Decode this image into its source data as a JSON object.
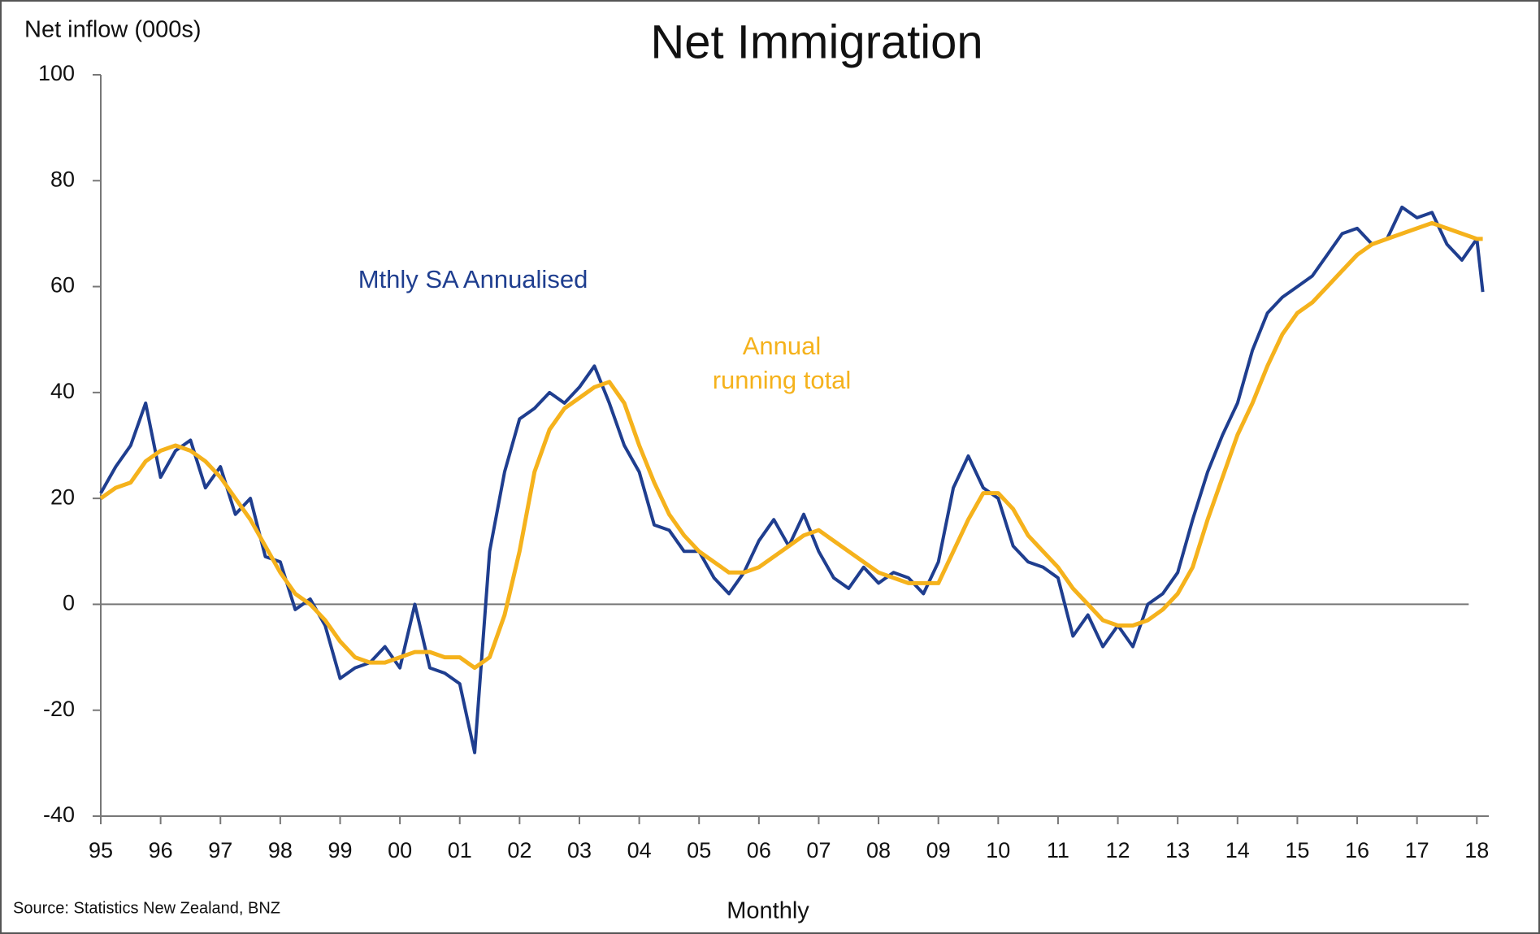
{
  "chart_data": {
    "type": "line",
    "title": "Net Immigration",
    "y_label": "Net inflow (000s)",
    "x_label": "Monthly",
    "source": "Source: Statistics New Zealand, BNZ",
    "annotations": [
      {
        "text": "Mthly SA Annualised",
        "color": "#1f3e8f"
      },
      {
        "text": "Annual",
        "color": "#f5b21c"
      },
      {
        "text": "running total",
        "color": "#f5b21c"
      }
    ],
    "x": [
      1995,
      1995.25,
      1995.5,
      1995.75,
      1996,
      1996.25,
      1996.5,
      1996.75,
      1997,
      1997.25,
      1997.5,
      1997.75,
      1998,
      1998.25,
      1998.5,
      1998.75,
      1999,
      1999.25,
      1999.5,
      1999.75,
      2000,
      2000.25,
      2000.5,
      2000.75,
      2001,
      2001.25,
      2001.5,
      2001.75,
      2002,
      2002.25,
      2002.5,
      2002.75,
      2003,
      2003.25,
      2003.5,
      2003.75,
      2004,
      2004.25,
      2004.5,
      2004.75,
      2005,
      2005.25,
      2005.5,
      2005.75,
      2006,
      2006.25,
      2006.5,
      2006.75,
      2007,
      2007.25,
      2007.5,
      2007.75,
      2008,
      2008.25,
      2008.5,
      2008.75,
      2009,
      2009.25,
      2009.5,
      2009.75,
      2010,
      2010.25,
      2010.5,
      2010.75,
      2011,
      2011.25,
      2011.5,
      2011.75,
      2012,
      2012.25,
      2012.5,
      2012.75,
      2013,
      2013.25,
      2013.5,
      2013.75,
      2014,
      2014.25,
      2014.5,
      2014.75,
      2015,
      2015.25,
      2015.5,
      2015.75,
      2016,
      2016.25,
      2016.5,
      2016.75,
      2017,
      2017.25,
      2017.5,
      2017.75,
      2018,
      2018.1
    ],
    "series": [
      {
        "name": "Mthly SA Annualised",
        "color": "#1f3e8f",
        "values": [
          21,
          26,
          30,
          38,
          24,
          29,
          31,
          22,
          26,
          17,
          20,
          9,
          8,
          -1,
          1,
          -4,
          -14,
          -12,
          -11,
          -8,
          -12,
          0,
          -12,
          -13,
          -15,
          -28,
          10,
          25,
          35,
          37,
          40,
          38,
          41,
          45,
          38,
          30,
          25,
          15,
          14,
          10,
          10,
          5,
          2,
          6,
          12,
          16,
          11,
          17,
          10,
          5,
          3,
          7,
          4,
          6,
          5,
          2,
          8,
          22,
          28,
          22,
          20,
          11,
          8,
          7,
          5,
          -6,
          -2,
          -8,
          -4,
          -8,
          0,
          2,
          6,
          16,
          25,
          32,
          38,
          48,
          55,
          58,
          60,
          62,
          66,
          70,
          71,
          68,
          69,
          75,
          73,
          74,
          68,
          65,
          69,
          59
        ]
      },
      {
        "name": "Annual running total",
        "color": "#f5b21c",
        "values": [
          20,
          22,
          23,
          27,
          29,
          30,
          29,
          27,
          24,
          20,
          16,
          11,
          6,
          2,
          0,
          -3,
          -7,
          -10,
          -11,
          -11,
          -10,
          -9,
          -9,
          -10,
          -10,
          -12,
          -10,
          -2,
          10,
          25,
          33,
          37,
          39,
          41,
          42,
          38,
          30,
          23,
          17,
          13,
          10,
          8,
          6,
          6,
          7,
          9,
          11,
          13,
          14,
          12,
          10,
          8,
          6,
          5,
          4,
          4,
          4,
          10,
          16,
          21,
          21,
          18,
          13,
          10,
          7,
          3,
          0,
          -3,
          -4,
          -4,
          -3,
          -1,
          2,
          7,
          16,
          24,
          32,
          38,
          45,
          51,
          55,
          57,
          60,
          63,
          66,
          68,
          69,
          70,
          71,
          72,
          71,
          70,
          69,
          69
        ]
      }
    ],
    "xlim": [
      1995,
      2018.2
    ],
    "xticks": [
      {
        "value": 1995,
        "label": "95"
      },
      {
        "value": 1996,
        "label": "96"
      },
      {
        "value": 1997,
        "label": "97"
      },
      {
        "value": 1998,
        "label": "98"
      },
      {
        "value": 1999,
        "label": "99"
      },
      {
        "value": 2000,
        "label": "00"
      },
      {
        "value": 2001,
        "label": "01"
      },
      {
        "value": 2002,
        "label": "02"
      },
      {
        "value": 2003,
        "label": "03"
      },
      {
        "value": 2004,
        "label": "04"
      },
      {
        "value": 2005,
        "label": "05"
      },
      {
        "value": 2006,
        "label": "06"
      },
      {
        "value": 2007,
        "label": "07"
      },
      {
        "value": 2008,
        "label": "08"
      },
      {
        "value": 2009,
        "label": "09"
      },
      {
        "value": 2010,
        "label": "10"
      },
      {
        "value": 2011,
        "label": "11"
      },
      {
        "value": 2012,
        "label": "12"
      },
      {
        "value": 2013,
        "label": "13"
      },
      {
        "value": 2014,
        "label": "14"
      },
      {
        "value": 2015,
        "label": "15"
      },
      {
        "value": 2016,
        "label": "16"
      },
      {
        "value": 2017,
        "label": "17"
      },
      {
        "value": 2018,
        "label": "18"
      }
    ],
    "ylim": [
      -40,
      100
    ],
    "yticks": [
      -40,
      -20,
      0,
      20,
      40,
      60,
      80,
      100
    ],
    "zero_line": true,
    "grid": false
  }
}
